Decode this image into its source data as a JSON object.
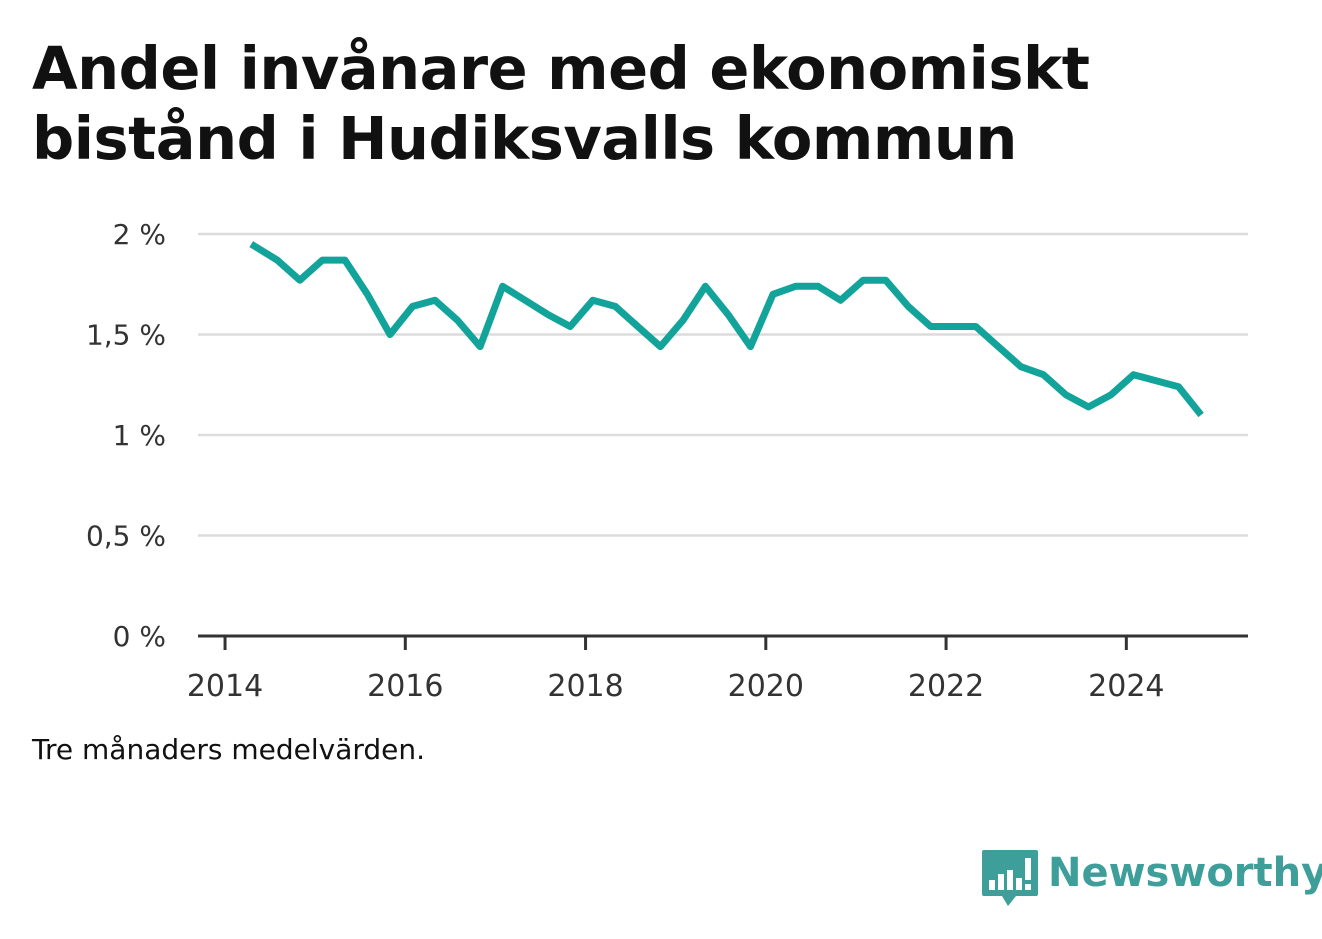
{
  "title": "Andel invånare med ekonomiskt bistånd i Hudiksvalls kommun",
  "footnote": "Tre månaders medelvärden.",
  "brand": {
    "name": "Newsworthy",
    "icon": "bar-chart-speech-bubble-icon",
    "color": "#3e9e9a"
  },
  "chart_data": {
    "type": "line",
    "title": "Andel invånare med ekonomiskt bistånd i Hudiksvalls kommun",
    "xlabel": "",
    "ylabel": "",
    "line_color": "#12a39a",
    "grid": true,
    "ylim": [
      0,
      2
    ],
    "xlim": [
      2013.7,
      2025.35
    ],
    "y_ticks": [
      {
        "value": 0,
        "label": "0 %"
      },
      {
        "value": 0.5,
        "label": "0,5 %"
      },
      {
        "value": 1,
        "label": "1 %"
      },
      {
        "value": 1.5,
        "label": "1,5 %"
      },
      {
        "value": 2,
        "label": "2 %"
      }
    ],
    "x_ticks": [
      {
        "value": 2014,
        "label": "2014"
      },
      {
        "value": 2016,
        "label": "2016"
      },
      {
        "value": 2018,
        "label": "2018"
      },
      {
        "value": 2020,
        "label": "2020"
      },
      {
        "value": 2022,
        "label": "2022"
      },
      {
        "value": 2024,
        "label": "2024"
      }
    ],
    "series": [
      {
        "x": [
          2014.29,
          2014.58,
          2014.83,
          2015.08,
          2015.33,
          2015.58,
          2015.83,
          2016.08,
          2016.33,
          2016.58,
          2016.83,
          2017.08,
          2017.33,
          2017.58,
          2017.83,
          2018.08,
          2018.33,
          2018.58,
          2018.83,
          2019.08,
          2019.33,
          2019.58,
          2019.83,
          2020.08,
          2020.33,
          2020.58,
          2020.83,
          2021.08,
          2021.33,
          2021.58,
          2021.83,
          2022.08,
          2022.33,
          2022.58,
          2022.83,
          2023.08,
          2023.33,
          2023.58,
          2023.83,
          2024.08,
          2024.33,
          2024.58,
          2024.83
        ],
        "values": [
          1.95,
          1.87,
          1.77,
          1.87,
          1.87,
          1.7,
          1.5,
          1.64,
          1.67,
          1.57,
          1.44,
          1.74,
          1.67,
          1.6,
          1.54,
          1.67,
          1.64,
          1.54,
          1.44,
          1.57,
          1.74,
          1.6,
          1.44,
          1.7,
          1.74,
          1.74,
          1.67,
          1.77,
          1.77,
          1.64,
          1.54,
          1.54,
          1.54,
          1.44,
          1.34,
          1.3,
          1.2,
          1.14,
          1.2,
          1.3,
          1.27,
          1.24,
          1.1
        ]
      }
    ]
  }
}
